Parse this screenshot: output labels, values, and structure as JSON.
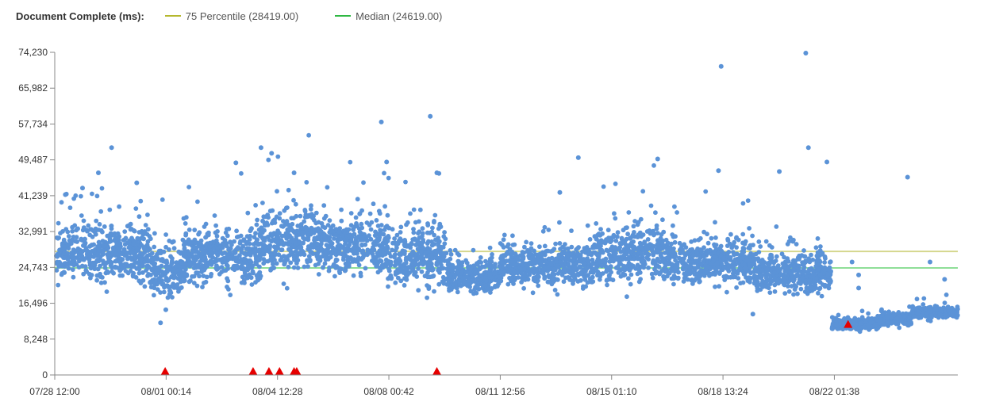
{
  "legend": {
    "title": "Document Complete (ms):",
    "items": [
      {
        "label": "75 Percentile (28419.00)",
        "color": "#b5b82e"
      },
      {
        "label": "Median (24619.00)",
        "color": "#2fb843"
      }
    ]
  },
  "chart_data": {
    "type": "scatter",
    "title": "",
    "xlabel": "",
    "ylabel": "Document Complete (ms)",
    "grid": false,
    "legend_position": "top-left",
    "xlim": [
      "07/28 12:00",
      "08/25 23:00"
    ],
    "ylim": [
      0,
      74230
    ],
    "x_tick_labels": [
      "07/28 12:00",
      "08/01 00:14",
      "08/04 12:28",
      "08/08 00:42",
      "08/11 12:56",
      "08/15 01:10",
      "08/18 13:24",
      "08/22 01:38"
    ],
    "y_tick_labels": [
      "74,230",
      "65,982",
      "57,734",
      "49,487",
      "41,239",
      "32,991",
      "24,743",
      "16,496",
      "8,248",
      "0"
    ],
    "reference_lines": [
      {
        "name": "75 Percentile",
        "value": 28419,
        "color": "#d4d68a"
      },
      {
        "name": "Median",
        "value": 24619,
        "color": "#7fd989"
      }
    ],
    "series": [
      {
        "color": "#5b93d7",
        "segments": [
          {
            "start": "07/28 13:00",
            "end": "07/31 12:00",
            "center": 28000,
            "spread": 3000
          },
          {
            "start": "07/31 12:00",
            "end": "08/01 12:00",
            "center": 23500,
            "spread": 2500
          },
          {
            "start": "08/01 12:00",
            "end": "08/04 00:00",
            "center": 27500,
            "spread": 3000
          },
          {
            "start": "08/04 00:00",
            "end": "08/06 00:00",
            "center": 31000,
            "spread": 3500
          },
          {
            "start": "08/06 00:00",
            "end": "08/08 00:00",
            "center": 29500,
            "spread": 3000
          },
          {
            "start": "08/08 00:00",
            "end": "08/09 20:00",
            "center": 27500,
            "spread": 3500
          },
          {
            "start": "08/09 20:00",
            "end": "08/11 12:00",
            "center": 22800,
            "spread": 1800
          },
          {
            "start": "08/11 12:00",
            "end": "08/14 12:00",
            "center": 25500,
            "spread": 2300
          },
          {
            "start": "08/14 12:00",
            "end": "08/17 00:00",
            "center": 27500,
            "spread": 3000
          },
          {
            "start": "08/17 00:00",
            "end": "08/19 12:00",
            "center": 26000,
            "spread": 2500
          },
          {
            "start": "08/19 12:00",
            "end": "08/21 23:00",
            "center": 23500,
            "spread": 2200
          },
          {
            "start": "08/21 23:30",
            "end": "08/23 12:00",
            "center": 11800,
            "spread": 700
          },
          {
            "start": "08/23 12:00",
            "end": "08/24 12:00",
            "center": 13000,
            "spread": 700
          },
          {
            "start": "08/24 12:00",
            "end": "08/25 23:00",
            "center": 14300,
            "spread": 600
          }
        ],
        "highlights": [
          {
            "x": "07/28 20:00",
            "y": 41500
          },
          {
            "x": "07/29 09:00",
            "y": 43000
          },
          {
            "x": "07/29 21:00",
            "y": 46500
          },
          {
            "x": "07/30 07:00",
            "y": 52300
          },
          {
            "x": "07/31 02:00",
            "y": 44200
          },
          {
            "x": "07/31 20:00",
            "y": 12000
          },
          {
            "x": "08/01 00:00",
            "y": 15000
          },
          {
            "x": "08/03 05:00",
            "y": 48800
          },
          {
            "x": "08/04 00:00",
            "y": 52300
          },
          {
            "x": "08/04 08:00",
            "y": 51000
          },
          {
            "x": "08/05 01:00",
            "y": 46500
          },
          {
            "x": "08/07 19:00",
            "y": 58200
          },
          {
            "x": "08/07 23:00",
            "y": 49000
          },
          {
            "x": "08/09 08:00",
            "y": 59500
          },
          {
            "x": "08/09 13:00",
            "y": 46500
          },
          {
            "x": "08/13 10:00",
            "y": 42000
          },
          {
            "x": "08/14 00:00",
            "y": 50000
          },
          {
            "x": "08/16 12:00",
            "y": 49700
          },
          {
            "x": "08/18 10:00",
            "y": 47000
          },
          {
            "x": "08/18 12:00",
            "y": 71000
          },
          {
            "x": "08/19 12:00",
            "y": 14000
          },
          {
            "x": "08/20 08:00",
            "y": 46800
          },
          {
            "x": "08/21 04:00",
            "y": 74230
          },
          {
            "x": "08/21 06:00",
            "y": 52300
          },
          {
            "x": "08/21 20:00",
            "y": 49000
          },
          {
            "x": "08/22 15:00",
            "y": 26000
          },
          {
            "x": "08/22 20:00",
            "y": 23000
          },
          {
            "x": "08/22 20:00",
            "y": 20000
          },
          {
            "x": "08/24 09:00",
            "y": 45500
          },
          {
            "x": "08/25 02:00",
            "y": 26000
          },
          {
            "x": "08/25 13:00",
            "y": 22000
          }
        ]
      },
      {
        "color": "#e60000",
        "marker": "triangle",
        "points": [
          {
            "x": "07/31 23:30",
            "y": 0
          },
          {
            "x": "08/03 18:00",
            "y": 0
          },
          {
            "x": "08/04 06:00",
            "y": 0
          },
          {
            "x": "08/04 14:00",
            "y": 0
          },
          {
            "x": "08/05 01:00",
            "y": 0
          },
          {
            "x": "08/05 03:00",
            "y": 0
          },
          {
            "x": "08/09 13:00",
            "y": 0
          },
          {
            "x": "08/22 12:00",
            "y": 11000
          }
        ]
      }
    ]
  }
}
